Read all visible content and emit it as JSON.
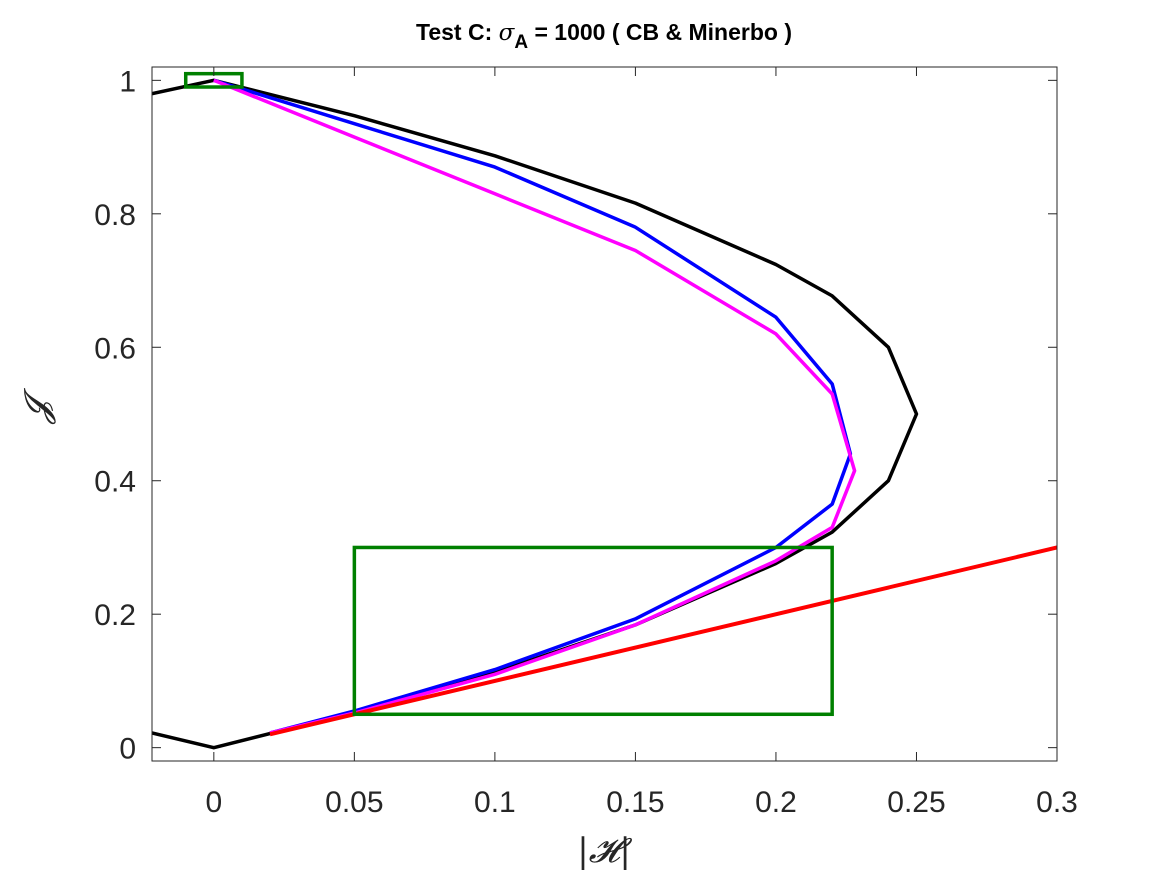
{
  "chart_data": {
    "type": "line",
    "title_parts": {
      "prefix": "Test C: ",
      "sigma": "σ",
      "sub": "A",
      "suffix": " = 1000 ( CB & Minerbo )"
    },
    "xlabel": "|𝓗|",
    "ylabel": "𝓙",
    "xlim": [
      -0.022,
      0.3
    ],
    "ylim": [
      -0.02,
      1.02
    ],
    "xticks": [
      0,
      0.05,
      0.1,
      0.15,
      0.2,
      0.25,
      0.3
    ],
    "xtick_labels": [
      "0",
      "0.05",
      "0.1",
      "0.15",
      "0.2",
      "0.25",
      "0.3"
    ],
    "yticks": [
      0,
      0.2,
      0.4,
      0.6,
      0.8,
      1
    ],
    "ytick_labels": [
      "0",
      "0.2",
      "0.4",
      "0.6",
      "0.8",
      "1"
    ],
    "grid": false,
    "colors": {
      "black": "#000000",
      "blue": "#0000ff",
      "magenta": "#ff00ff",
      "red": "#ff0000",
      "green": "#008000",
      "axis": "#262626"
    },
    "series": [
      {
        "color": "black",
        "x": [
          -0.022,
          0,
          0.05,
          0.1,
          0.15,
          0.2,
          0.22,
          0.24,
          0.25,
          0.24,
          0.22,
          0.2,
          0.15,
          0.1,
          0.05,
          0,
          -0.022
        ],
        "y": [
          0.98,
          1,
          0.947,
          0.887,
          0.816,
          0.724,
          0.677,
          0.6,
          0.5,
          0.4,
          0.323,
          0.276,
          0.184,
          0.113,
          0.053,
          0,
          0.022
        ]
      },
      {
        "color": "blue",
        "x": [
          0,
          0.05,
          0.1,
          0.15,
          0.2,
          0.22,
          0.2265,
          0.22,
          0.2,
          0.15,
          0.1,
          0.05,
          0.02
        ],
        "y": [
          1,
          0.935,
          0.87,
          0.78,
          0.645,
          0.545,
          0.44,
          0.365,
          0.3,
          0.193,
          0.117,
          0.055,
          0.022
        ]
      },
      {
        "color": "magenta",
        "x": [
          0,
          0.05,
          0.1,
          0.15,
          0.2,
          0.22,
          0.228,
          0.22,
          0.2,
          0.15,
          0.1,
          0.05,
          0.02
        ],
        "y": [
          1,
          0.915,
          0.83,
          0.745,
          0.62,
          0.53,
          0.415,
          0.33,
          0.28,
          0.184,
          0.11,
          0.052,
          0.022
        ]
      },
      {
        "color": "red",
        "x": [
          0.02,
          0.3
        ],
        "y": [
          0.02,
          0.3
        ]
      }
    ],
    "rectangles": [
      {
        "color": "green",
        "x": [
          -0.01,
          0.01
        ],
        "y": [
          0.99,
          1.01
        ]
      },
      {
        "color": "green",
        "x": [
          0.05,
          0.22
        ],
        "y": [
          0.05,
          0.3
        ]
      }
    ]
  }
}
